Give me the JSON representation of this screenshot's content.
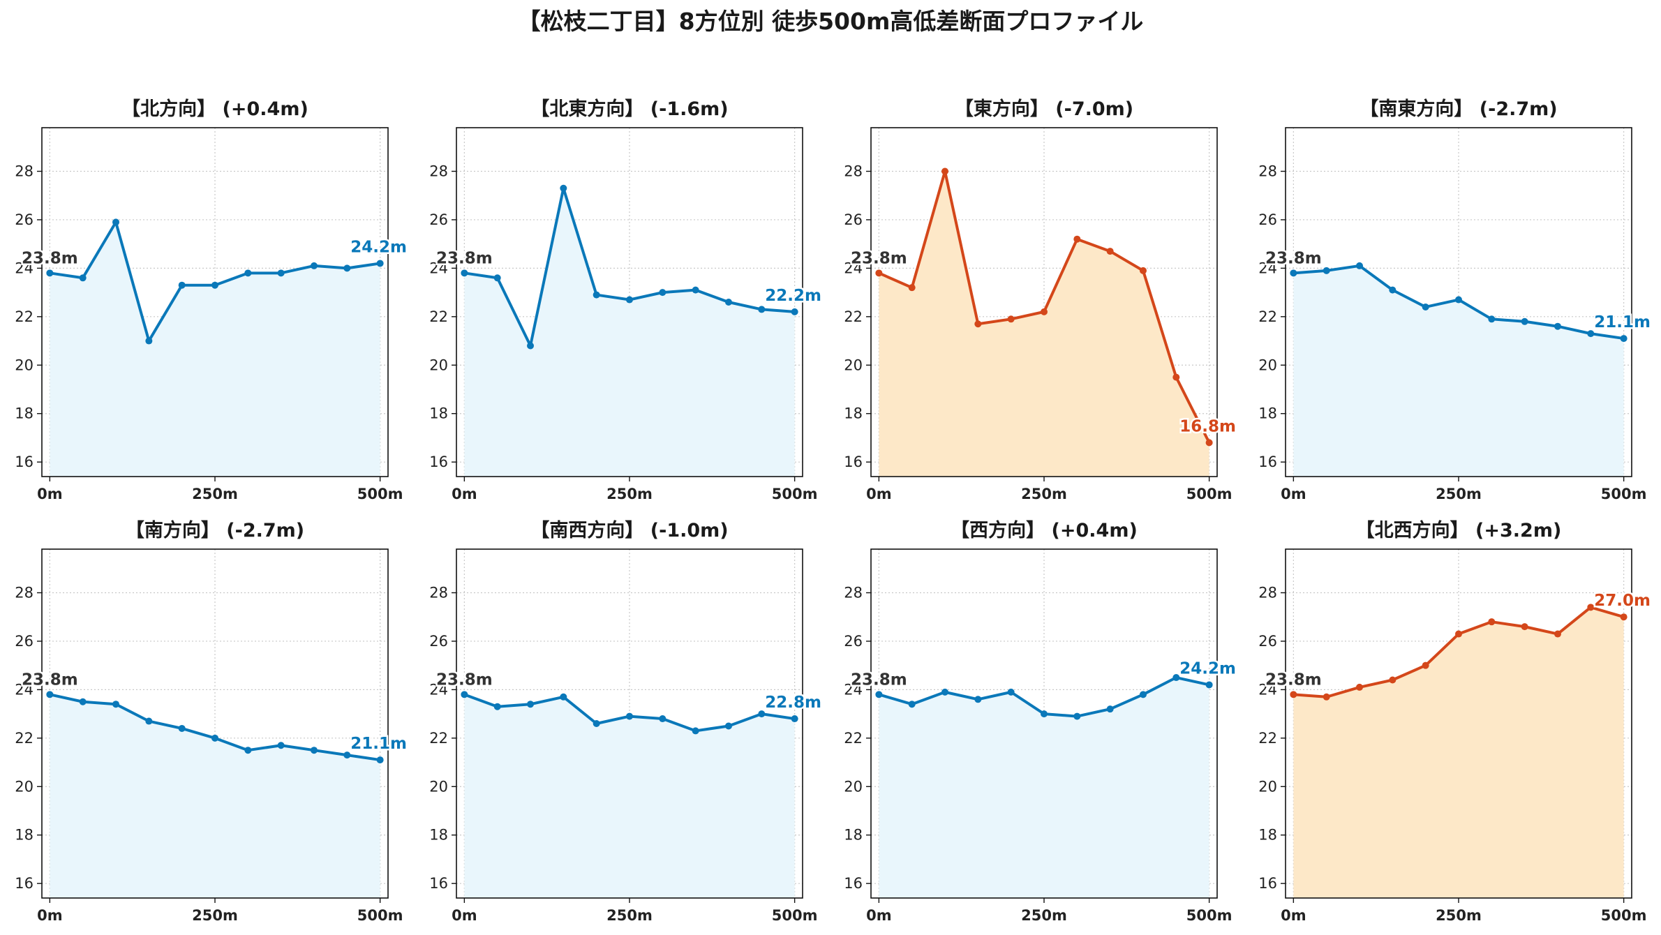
{
  "figure": {
    "title": "【松枝二丁目】8方位別 徒歩500m高低差断面プロファイル"
  },
  "colors": {
    "normal_line": "#0a78b9",
    "normal_fill": "#e9f6fc",
    "alert_line": "#d4471a",
    "alert_fill": "#fde8c8",
    "start_label": "#333333"
  },
  "chart_data": [
    {
      "type": "area",
      "title": "【北方向】 (+0.4m)",
      "highlight": false,
      "x": [
        0,
        50,
        100,
        150,
        200,
        250,
        300,
        350,
        400,
        450,
        500
      ],
      "values": [
        23.8,
        23.6,
        25.9,
        21.0,
        23.3,
        23.3,
        23.8,
        23.8,
        24.1,
        24.0,
        24.2
      ],
      "start_label": "23.8m",
      "end_label": "24.2m",
      "xticks": [
        "0m",
        "250m",
        "500m"
      ],
      "yticks": [
        "16",
        "18",
        "20",
        "22",
        "24",
        "26",
        "28"
      ],
      "ylim": [
        15.4,
        29.8
      ],
      "grid": true
    },
    {
      "type": "area",
      "title": "【北東方向】 (-1.6m)",
      "highlight": false,
      "x": [
        0,
        50,
        100,
        150,
        200,
        250,
        300,
        350,
        400,
        450,
        500
      ],
      "values": [
        23.8,
        23.6,
        20.8,
        27.3,
        22.9,
        22.7,
        23.0,
        23.1,
        22.6,
        22.3,
        22.2
      ],
      "start_label": "23.8m",
      "end_label": "22.2m",
      "xticks": [
        "0m",
        "250m",
        "500m"
      ],
      "yticks": [
        "16",
        "18",
        "20",
        "22",
        "24",
        "26",
        "28"
      ],
      "ylim": [
        15.4,
        29.8
      ],
      "grid": true
    },
    {
      "type": "area",
      "title": "【東方向】 (-7.0m)",
      "highlight": true,
      "x": [
        0,
        50,
        100,
        150,
        200,
        250,
        300,
        350,
        400,
        450,
        500
      ],
      "values": [
        23.8,
        23.2,
        28.0,
        21.7,
        21.9,
        22.2,
        25.2,
        24.7,
        23.9,
        19.5,
        16.8
      ],
      "start_label": "23.8m",
      "end_label": "16.8m",
      "xticks": [
        "0m",
        "250m",
        "500m"
      ],
      "yticks": [
        "16",
        "18",
        "20",
        "22",
        "24",
        "26",
        "28"
      ],
      "ylim": [
        15.4,
        29.8
      ],
      "grid": true
    },
    {
      "type": "area",
      "title": "【南東方向】 (-2.7m)",
      "highlight": false,
      "x": [
        0,
        50,
        100,
        150,
        200,
        250,
        300,
        350,
        400,
        450,
        500
      ],
      "values": [
        23.8,
        23.9,
        24.1,
        23.1,
        22.4,
        22.7,
        21.9,
        21.8,
        21.6,
        21.3,
        21.1
      ],
      "start_label": "23.8m",
      "end_label": "21.1m",
      "xticks": [
        "0m",
        "250m",
        "500m"
      ],
      "yticks": [
        "16",
        "18",
        "20",
        "22",
        "24",
        "26",
        "28"
      ],
      "ylim": [
        15.4,
        29.8
      ],
      "grid": true
    },
    {
      "type": "area",
      "title": "【南方向】 (-2.7m)",
      "highlight": false,
      "x": [
        0,
        50,
        100,
        150,
        200,
        250,
        300,
        350,
        400,
        450,
        500
      ],
      "values": [
        23.8,
        23.5,
        23.4,
        22.7,
        22.4,
        22.0,
        21.5,
        21.7,
        21.5,
        21.3,
        21.1
      ],
      "start_label": "23.8m",
      "end_label": "21.1m",
      "xticks": [
        "0m",
        "250m",
        "500m"
      ],
      "yticks": [
        "16",
        "18",
        "20",
        "22",
        "24",
        "26",
        "28"
      ],
      "ylim": [
        15.4,
        29.8
      ],
      "grid": true
    },
    {
      "type": "area",
      "title": "【南西方向】 (-1.0m)",
      "highlight": false,
      "x": [
        0,
        50,
        100,
        150,
        200,
        250,
        300,
        350,
        400,
        450,
        500
      ],
      "values": [
        23.8,
        23.3,
        23.4,
        23.7,
        22.6,
        22.9,
        22.8,
        22.3,
        22.5,
        23.0,
        22.8
      ],
      "start_label": "23.8m",
      "end_label": "22.8m",
      "xticks": [
        "0m",
        "250m",
        "500m"
      ],
      "yticks": [
        "16",
        "18",
        "20",
        "22",
        "24",
        "26",
        "28"
      ],
      "ylim": [
        15.4,
        29.8
      ],
      "grid": true
    },
    {
      "type": "area",
      "title": "【西方向】 (+0.4m)",
      "highlight": false,
      "x": [
        0,
        50,
        100,
        150,
        200,
        250,
        300,
        350,
        400,
        450,
        500
      ],
      "values": [
        23.8,
        23.4,
        23.9,
        23.6,
        23.9,
        23.0,
        22.9,
        23.2,
        23.8,
        24.5,
        24.2
      ],
      "start_label": "23.8m",
      "end_label": "24.2m",
      "xticks": [
        "0m",
        "250m",
        "500m"
      ],
      "yticks": [
        "16",
        "18",
        "20",
        "22",
        "24",
        "26",
        "28"
      ],
      "ylim": [
        15.4,
        29.8
      ],
      "grid": true
    },
    {
      "type": "area",
      "title": "【北西方向】 (+3.2m)",
      "highlight": true,
      "x": [
        0,
        50,
        100,
        150,
        200,
        250,
        300,
        350,
        400,
        450,
        500
      ],
      "values": [
        23.8,
        23.7,
        24.1,
        24.4,
        25.0,
        26.3,
        26.8,
        26.6,
        26.3,
        27.4,
        27.0
      ],
      "start_label": "23.8m",
      "end_label": "27.0m",
      "xticks": [
        "0m",
        "250m",
        "500m"
      ],
      "yticks": [
        "16",
        "18",
        "20",
        "22",
        "24",
        "26",
        "28"
      ],
      "ylim": [
        15.4,
        29.8
      ],
      "grid": true
    }
  ]
}
